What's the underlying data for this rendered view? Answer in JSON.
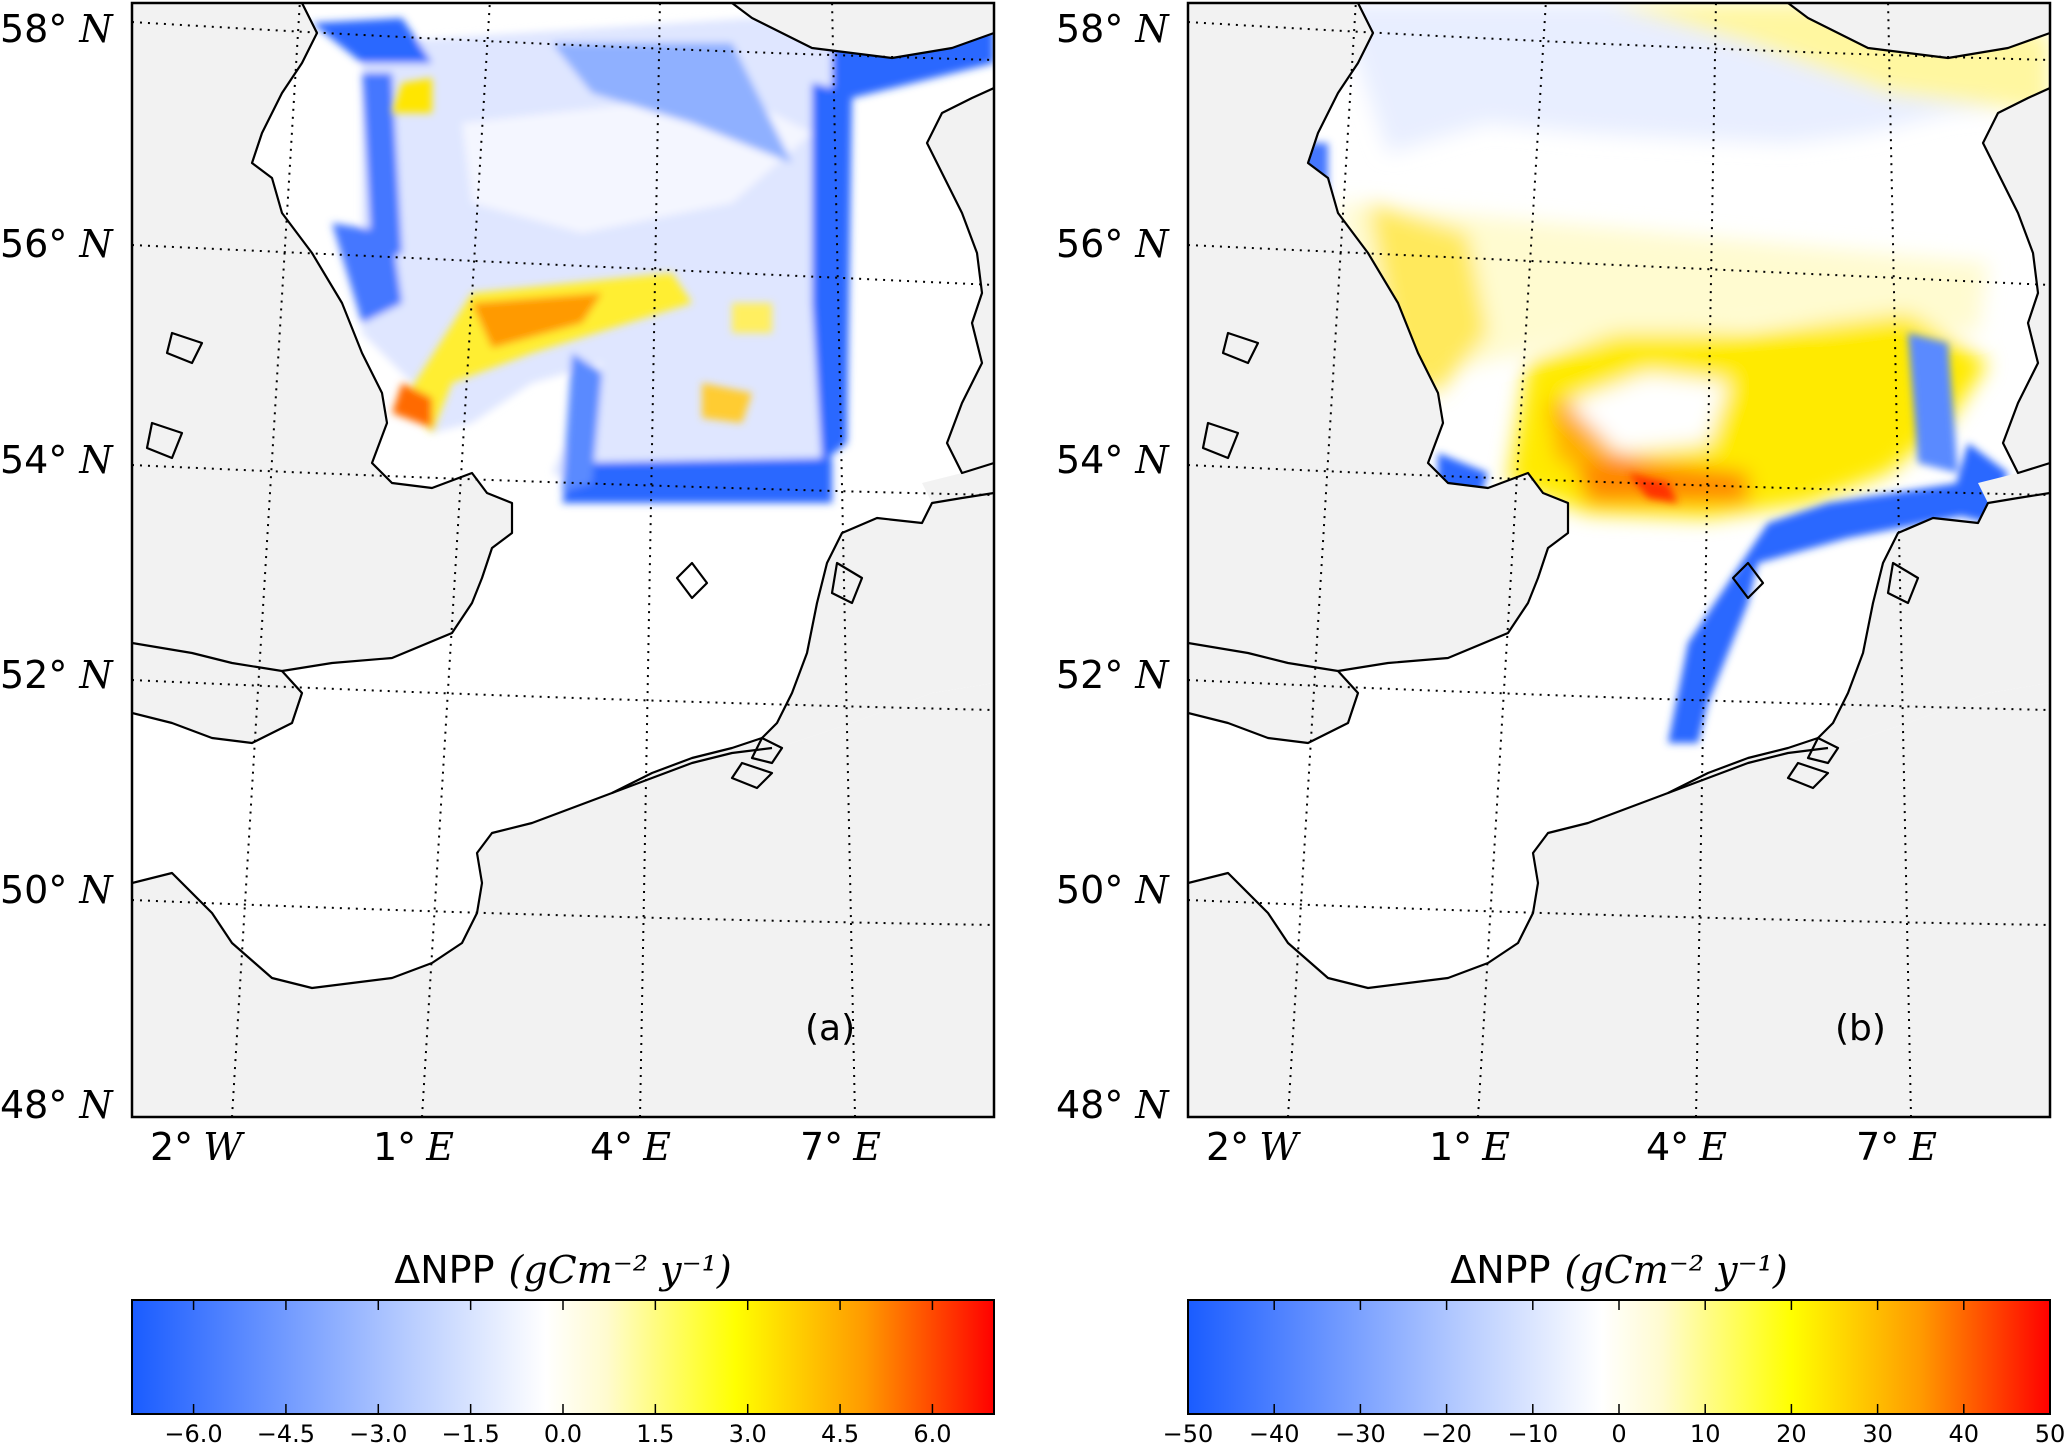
{
  "panels": [
    {
      "id": "a",
      "label": "(a)",
      "colorbar": {
        "title_text": "ΔNPP",
        "unit_text": "(gCm⁻² y⁻¹)",
        "min": -7.0,
        "max": 7.0,
        "ticks": [
          "−6.0",
          "−4.5",
          "−3.0",
          "−1.5",
          "0.0",
          "1.5",
          "3.0",
          "4.5",
          "6.0"
        ],
        "tick_values": [
          -6.0,
          -4.5,
          -3.0,
          -1.5,
          0.0,
          1.5,
          3.0,
          4.5,
          6.0
        ]
      }
    },
    {
      "id": "b",
      "label": "(b)",
      "colorbar": {
        "title_text": "ΔNPP",
        "unit_text": "(gCm⁻² y⁻¹)",
        "min": -50,
        "max": 50,
        "ticks": [
          "−50",
          "−40",
          "−30",
          "−20",
          "−10",
          "0",
          "10",
          "20",
          "30",
          "40",
          "50"
        ],
        "tick_values": [
          -50,
          -40,
          -30,
          -20,
          -10,
          0,
          10,
          20,
          30,
          40,
          50
        ]
      }
    }
  ],
  "lat_labels": [
    {
      "num": "58°",
      "dir": "N"
    },
    {
      "num": "56°",
      "dir": "N"
    },
    {
      "num": "54°",
      "dir": "N"
    },
    {
      "num": "52°",
      "dir": "N"
    },
    {
      "num": "50°",
      "dir": "N"
    },
    {
      "num": "48°",
      "dir": "N"
    }
  ],
  "lon_labels": [
    {
      "num": "2°",
      "dir": "W"
    },
    {
      "num": "1°",
      "dir": "E"
    },
    {
      "num": "4°",
      "dir": "E"
    },
    {
      "num": "7°",
      "dir": "E"
    }
  ],
  "colors": {
    "land": "#f2f2f2",
    "sea": "#ffffff",
    "coast": "#000000",
    "cmap_blue": "#1a5cff",
    "cmap_white": "#ffffff",
    "cmap_yellow": "#ffff00",
    "cmap_orange": "#ff9900",
    "cmap_red": "#ff0000"
  }
}
